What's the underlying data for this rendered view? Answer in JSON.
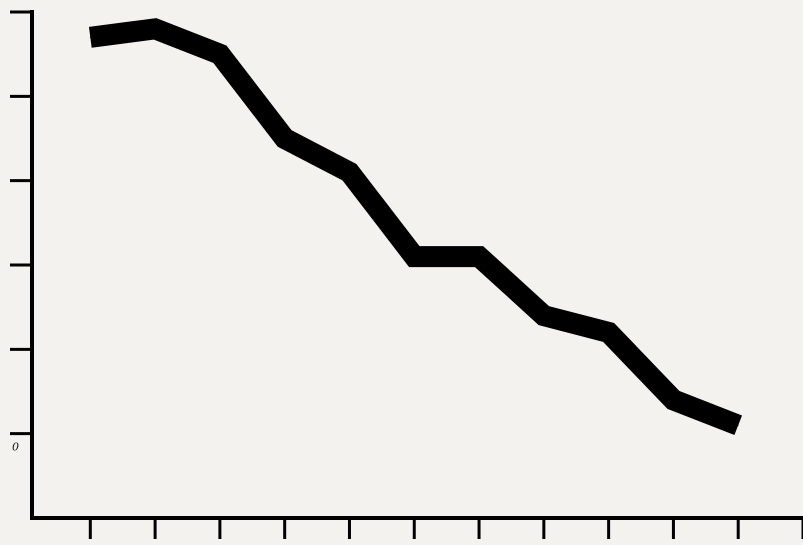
{
  "chart_data": {
    "type": "line",
    "title": "",
    "xlabel": "",
    "ylabel": "",
    "y_tick_labels": [
      "0"
    ],
    "x": [
      0,
      1,
      2,
      3,
      4,
      5,
      6,
      7,
      8,
      9,
      10,
      11,
      12
    ],
    "y": [
      4.7,
      4.8,
      4.5,
      3.5,
      3.1,
      2.1,
      2.1,
      1.4,
      1.2,
      0.4,
      0.1,
      null,
      null
    ],
    "xlim": [
      -0.9,
      11.0
    ],
    "ylim": [
      -1.0,
      5.0
    ],
    "x_ticks": [
      0,
      1,
      2,
      3,
      4,
      5,
      6,
      7,
      8,
      9,
      10,
      11
    ],
    "y_ticks": [
      0,
      1,
      2,
      3,
      4,
      5
    ],
    "grid": false,
    "legend": "none",
    "line_color": "#000000",
    "background": "#f3f2ef"
  }
}
